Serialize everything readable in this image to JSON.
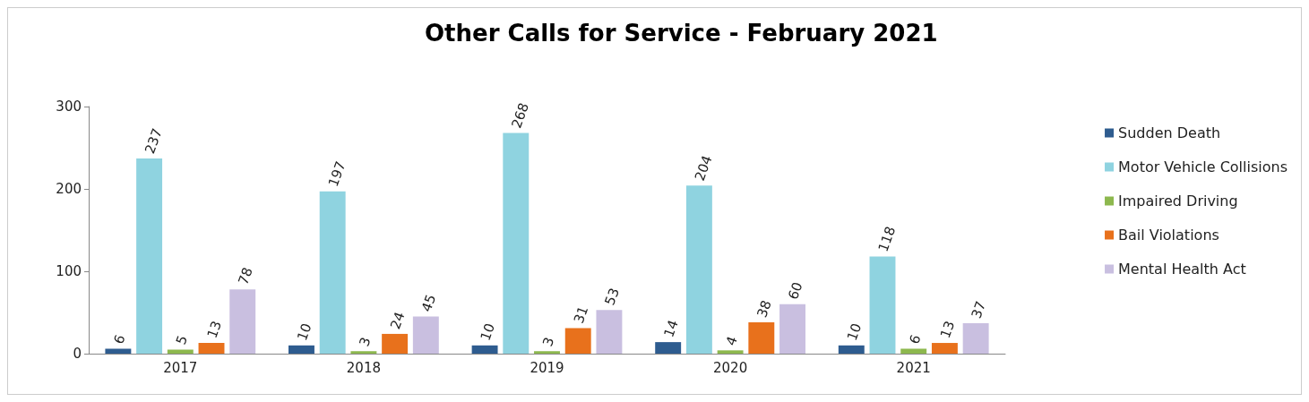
{
  "chart_data": {
    "type": "bar",
    "title": "Other Calls for Service - February 2021",
    "categories": [
      "2017",
      "2018",
      "2019",
      "2020",
      "2021"
    ],
    "series": [
      {
        "name": "Sudden Death",
        "color": "#2e5c8f",
        "values": [
          6,
          10,
          10,
          14,
          10
        ]
      },
      {
        "name": "Motor Vehicle Collisions",
        "color": "#8fd3e0",
        "values": [
          237,
          197,
          268,
          204,
          118
        ]
      },
      {
        "name": "Impaired Driving",
        "color": "#8db84e",
        "values": [
          5,
          3,
          3,
          4,
          6
        ]
      },
      {
        "name": "Bail Violations",
        "color": "#e8711c",
        "values": [
          13,
          24,
          31,
          38,
          13
        ]
      },
      {
        "name": "Mental Health Act",
        "color": "#c9bfe0",
        "values": [
          78,
          45,
          53,
          60,
          37
        ]
      }
    ],
    "ylim": [
      0,
      300
    ],
    "yticks": [
      0,
      100,
      200,
      300
    ],
    "grid": false,
    "legend": "right",
    "data_labels": true
  }
}
